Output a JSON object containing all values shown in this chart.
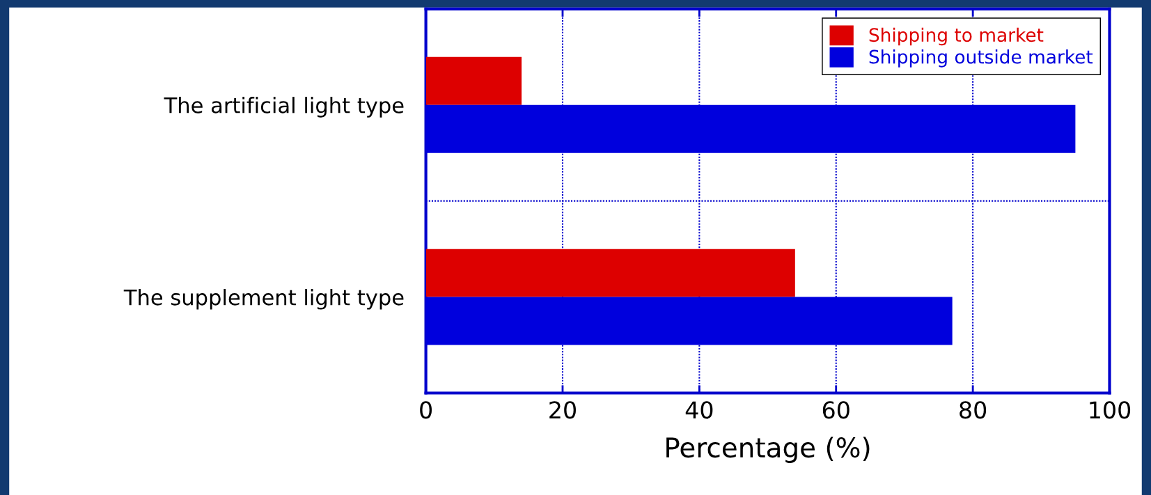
{
  "chart_data": {
    "type": "bar",
    "orientation": "horizontal",
    "xlabel": "Percentage (%)",
    "categories": [
      "The artificial light type",
      "The supplement light type"
    ],
    "series": [
      {
        "name": "Shipping to market",
        "color": "#dd0000",
        "values": [
          14,
          54
        ]
      },
      {
        "name": "Shipping outside market",
        "color": "#0000dd",
        "values": [
          95,
          77
        ]
      }
    ],
    "xlim": [
      0,
      100
    ],
    "xticks": [
      0,
      20,
      40,
      60,
      80,
      100
    ],
    "grid": true,
    "legend": "top right"
  }
}
